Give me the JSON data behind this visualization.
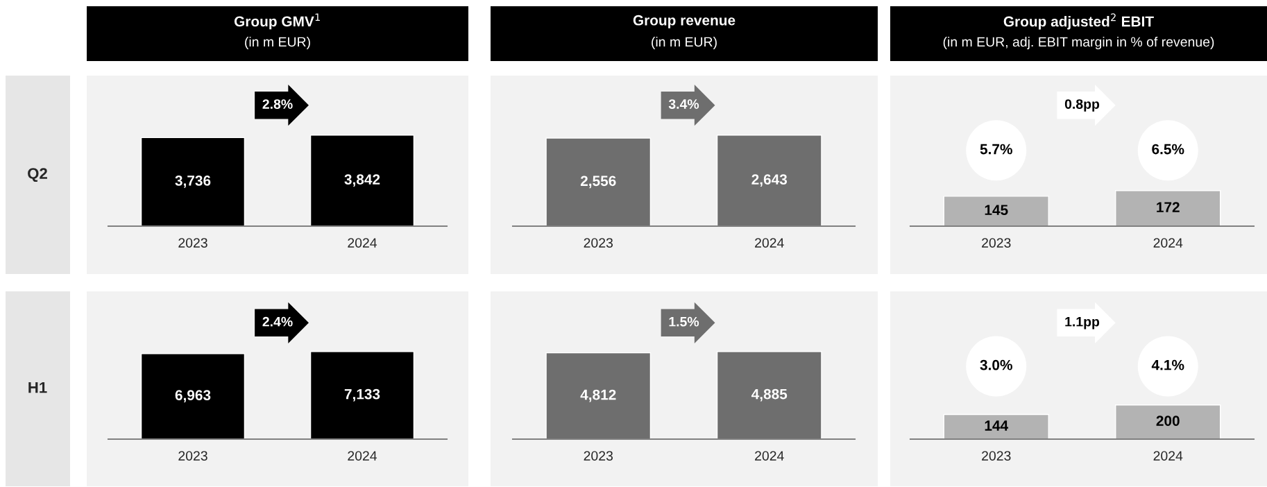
{
  "chart_data": [
    {
      "type": "bar",
      "title": "Group GMV$^{1}$",
      "subtitle": "(in m EUR)",
      "categories": [
        "2023",
        "2024"
      ],
      "values": [
        3736,
        3842
      ],
      "color": "#000000",
      "value_labels": [
        "3,736",
        "3,842"
      ],
      "tick_labels": "x",
      "annotations": [
        "2.8%",
        "Q2"
      ]
    },
    {
      "type": "bar",
      "title": "Group revenue",
      "subtitle": "(in m EUR)",
      "categories": [
        "2023",
        "2024"
      ],
      "values": [
        2556,
        2643
      ],
      "color": "#6e6e6e",
      "value_labels": [
        "2,556",
        "2,643"
      ],
      "tick_labels": "x",
      "annotations": [
        "3.4%"
      ]
    },
    {
      "type": "bar",
      "title": "Group adjusted$^{2}$ EBIT",
      "subtitle": "(in m EUR, adj. EBIT margin in % of revenue)",
      "categories": [
        "2023",
        "2024"
      ],
      "values": [
        145,
        172
      ],
      "color": "#b3b3b3",
      "value_labels": [
        "145",
        "172"
      ],
      "tick_labels": "x",
      "annotations": [
        "0.8pp",
        "5.7%",
        "6.5%"
      ]
    },
    {
      "type": "bar",
      "categories": [
        "2023",
        "2024"
      ],
      "values": [
        6963,
        7133
      ],
      "color": "#000000",
      "value_labels": [
        "6,963",
        "7,133"
      ],
      "tick_labels": "x",
      "annotations": [
        "2.4%",
        "H1"
      ]
    },
    {
      "type": "bar",
      "categories": [
        "2023",
        "2024"
      ],
      "values": [
        4812,
        4885
      ],
      "color": "#6e6e6e",
      "value_labels": [
        "4,812",
        "4,885"
      ],
      "tick_labels": "x",
      "annotations": [
        "1.5%"
      ]
    },
    {
      "type": "bar",
      "categories": [
        "2023",
        "2024"
      ],
      "values": [
        144,
        200
      ],
      "color": "#b3b3b3",
      "value_labels": [
        "144",
        "200"
      ],
      "tick_labels": "x",
      "annotations": [
        "1.1pp",
        "3.0%",
        "4.1%"
      ]
    }
  ]
}
